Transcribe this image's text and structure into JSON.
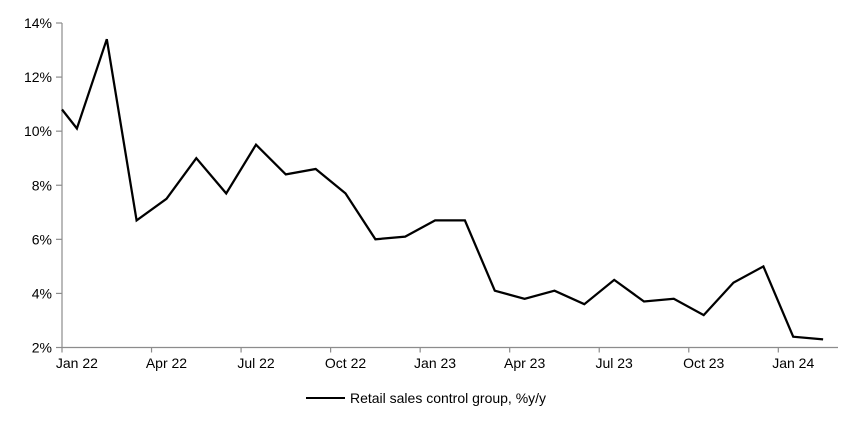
{
  "chart_data": {
    "type": "line",
    "title": "",
    "xlabel": "",
    "ylabel": "",
    "ylim": [
      2,
      14
    ],
    "grid": false,
    "axis_color": "#8c8c8c",
    "categories": [
      "Jan 22",
      "Feb 22",
      "Mar 22",
      "Apr 22",
      "May 22",
      "Jun 22",
      "Jul 22",
      "Aug 22",
      "Sep 22",
      "Oct 22",
      "Nov 22",
      "Dec 22",
      "Jan 23",
      "Feb 23",
      "Mar 23",
      "Apr 23",
      "May 23",
      "Jun 23",
      "Jul 23",
      "Aug 23",
      "Sep 23",
      "Oct 23",
      "Nov 23",
      "Dec 23",
      "Jan 24",
      "Feb 24"
    ],
    "series": [
      {
        "name": "Retail sales control group, %y/y",
        "color": "#000000",
        "values": [
          10.1,
          13.4,
          6.7,
          7.5,
          9.0,
          7.7,
          9.5,
          8.4,
          8.6,
          7.7,
          6.0,
          6.1,
          6.7,
          6.7,
          4.1,
          3.8,
          4.1,
          3.6,
          4.5,
          3.7,
          3.8,
          3.2,
          4.4,
          5.0,
          2.4,
          2.3
        ],
        "edge_leadin_value": 10.8
      }
    ],
    "yticks": [
      "2%",
      "4%",
      "6%",
      "8%",
      "10%",
      "12%",
      "14%"
    ],
    "xticks": [
      "Jan 22",
      "Apr 22",
      "Jul 22",
      "Oct 22",
      "Jan 23",
      "Apr 23",
      "Jul 23",
      "Oct 23",
      "Jan 24"
    ],
    "legend": {
      "position": "bottom-center",
      "label": "Retail sales control group, %y/y"
    }
  }
}
